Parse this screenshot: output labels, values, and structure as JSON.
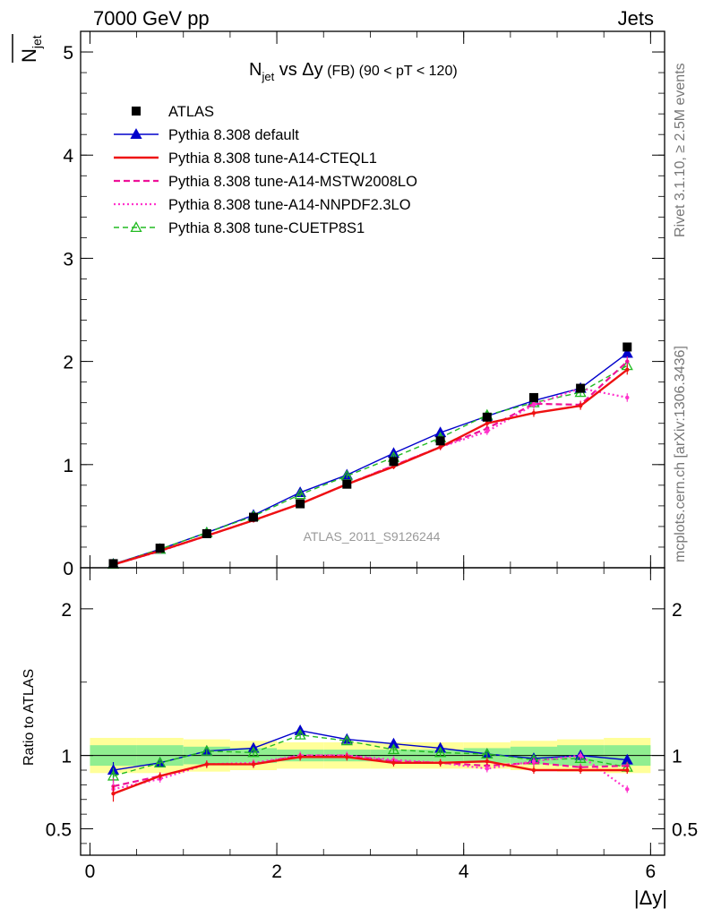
{
  "header": {
    "left": "7000 GeV pp",
    "right": "Jets"
  },
  "top_title": {
    "main": "N",
    "main_sub": "jet",
    "vs": " vs Δy",
    "qualifier": " (FB) (90 < pT < 120)"
  },
  "y_axis_top": {
    "label_main": "N",
    "label_sub": "jet"
  },
  "y_axis_bottom": {
    "label": "Ratio to ATLAS"
  },
  "x_axis": {
    "label": "|Δy|"
  },
  "side_labels": {
    "rivet": "Rivet 3.1.10, ≥ 2.5M events",
    "mcplots": "mcplots.cern.ch [arXiv:1306.3436]"
  },
  "watermark": "ATLAS_2011_S9126244",
  "colors": {
    "atlas": "#000000",
    "default": "#0000cc",
    "cteql1": "#ee1111",
    "mstw": "#ee1199",
    "nnpdf": "#ff33cc",
    "cuetp": "#22bb22",
    "band_inner": "#90ee90",
    "band_outer": "#ffff99"
  },
  "chart_data": {
    "type": "line",
    "x": [
      0.25,
      0.75,
      1.25,
      1.75,
      2.25,
      2.75,
      3.25,
      3.75,
      4.25,
      4.75,
      5.25,
      5.75
    ],
    "bin_edges": [
      0,
      0.5,
      1.0,
      1.5,
      2.0,
      2.5,
      3.0,
      3.5,
      4.0,
      4.5,
      5.0,
      5.5,
      6.0
    ],
    "xlim": [
      -0.1,
      6.15
    ],
    "top_ylim": [
      0,
      5.2
    ],
    "top_yticks": [
      0,
      1,
      2,
      3,
      4,
      5
    ],
    "ratio_ylim": [
      0.32,
      2.28
    ],
    "ratio_yticks": [
      0.5,
      1,
      2
    ],
    "xticks": [
      0,
      2,
      4,
      6
    ],
    "grid": false,
    "legend_position": "top-left",
    "series": [
      {
        "name": "ATLAS",
        "key": "atlas",
        "values": [
          0.04,
          0.19,
          0.33,
          0.49,
          0.62,
          0.81,
          1.03,
          1.23,
          1.46,
          1.65,
          1.74,
          2.14
        ]
      },
      {
        "name": "Pythia 8.308 default",
        "key": "default",
        "values": [
          0.036,
          0.18,
          0.34,
          0.51,
          0.73,
          0.9,
          1.11,
          1.31,
          1.47,
          1.62,
          1.74,
          2.08
        ]
      },
      {
        "name": "Pythia 8.308 tune-A14-CTEQL1",
        "key": "cteql1",
        "values": [
          0.03,
          0.165,
          0.31,
          0.46,
          0.62,
          0.81,
          0.98,
          1.17,
          1.4,
          1.5,
          1.57,
          1.92
        ]
      },
      {
        "name": "Pythia 8.308 tune-A14-MSTW2008LO",
        "key": "mstw",
        "values": [
          0.032,
          0.163,
          0.31,
          0.46,
          0.62,
          0.81,
          0.99,
          1.17,
          1.35,
          1.59,
          1.58,
          2.0
        ]
      },
      {
        "name": "Pythia 8.308 tune-A14-NNPDF2.3LO",
        "key": "nnpdf",
        "values": [
          0.03,
          0.16,
          0.31,
          0.46,
          0.62,
          0.81,
          0.99,
          1.17,
          1.32,
          1.58,
          1.74,
          1.65
        ]
      },
      {
        "name": "Pythia 8.308 tune-CUETP8S1",
        "key": "cuetp",
        "values": [
          0.034,
          0.18,
          0.34,
          0.5,
          0.71,
          0.89,
          1.07,
          1.26,
          1.48,
          1.6,
          1.7,
          1.96
        ]
      }
    ],
    "ratios": {
      "default": [
        0.9,
        0.95,
        1.03,
        1.05,
        1.17,
        1.11,
        1.08,
        1.05,
        1.01,
        0.98,
        1.0,
        0.97
      ],
      "cteql1": [
        0.74,
        0.86,
        0.94,
        0.94,
        0.99,
        0.99,
        0.95,
        0.95,
        0.96,
        0.9,
        0.9,
        0.9
      ],
      "mstw": [
        0.79,
        0.86,
        0.94,
        0.94,
        1.0,
        1.0,
        0.96,
        0.95,
        0.93,
        0.95,
        0.92,
        0.93
      ],
      "nnpdf": [
        0.77,
        0.84,
        0.94,
        0.95,
        1.0,
        1.0,
        0.97,
        0.95,
        0.91,
        0.96,
        1.0,
        0.77
      ],
      "cuetp": [
        0.86,
        0.95,
        1.03,
        1.02,
        1.14,
        1.1,
        1.04,
        1.02,
        1.01,
        0.97,
        0.98,
        0.92
      ]
    },
    "ratio_band_outer": [
      0.12,
      0.12,
      0.11,
      0.1,
      0.09,
      0.09,
      0.09,
      0.09,
      0.09,
      0.1,
      0.11,
      0.12
    ],
    "ratio_band_inner": [
      0.07,
      0.07,
      0.06,
      0.05,
      0.04,
      0.04,
      0.04,
      0.04,
      0.05,
      0.06,
      0.07,
      0.07
    ]
  }
}
